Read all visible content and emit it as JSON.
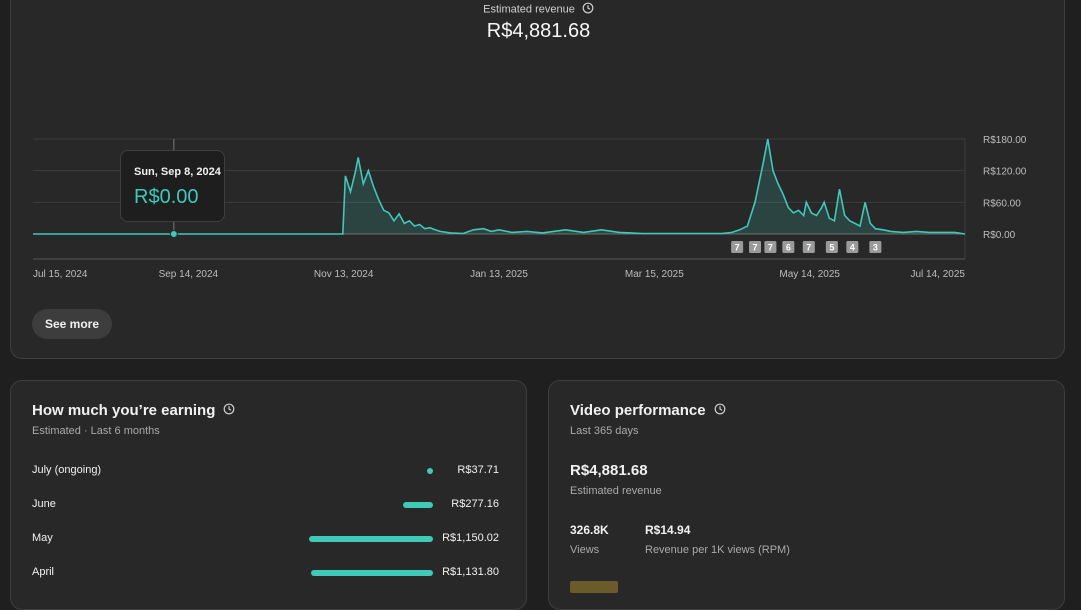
{
  "summary": {
    "title": "Estimated revenue",
    "value": "R$4,881.68"
  },
  "chart_data": {
    "type": "area",
    "x_range": [
      "2024-07-15",
      "2025-07-14"
    ],
    "x_ticks": [
      "Jul 15, 2024",
      "Sep 14, 2024",
      "Nov 13, 2024",
      "Jan 13, 2025",
      "Mar 15, 2025",
      "May 14, 2025",
      "Jul 14, 2025"
    ],
    "y_ticks": [
      "R$180.00",
      "R$120.00",
      "R$60.00",
      "R$0.00"
    ],
    "ylim": [
      0,
      180
    ],
    "grid": true,
    "color": "#3ec9b8",
    "series": [
      {
        "points": [
          [
            "2024-07-15",
            0
          ],
          [
            "2024-08-15",
            0
          ],
          [
            "2024-09-08",
            0
          ],
          [
            "2024-10-15",
            0
          ],
          [
            "2024-11-13",
            0
          ],
          [
            "2024-11-14",
            110
          ],
          [
            "2024-11-16",
            80
          ],
          [
            "2024-11-18",
            120
          ],
          [
            "2024-11-19",
            145
          ],
          [
            "2024-11-21",
            95
          ],
          [
            "2024-11-23",
            120
          ],
          [
            "2024-11-25",
            90
          ],
          [
            "2024-11-27",
            65
          ],
          [
            "2024-11-29",
            45
          ],
          [
            "2024-12-01",
            40
          ],
          [
            "2024-12-03",
            25
          ],
          [
            "2024-12-05",
            38
          ],
          [
            "2024-12-07",
            20
          ],
          [
            "2024-12-09",
            25
          ],
          [
            "2024-12-11",
            15
          ],
          [
            "2024-12-13",
            18
          ],
          [
            "2024-12-15",
            10
          ],
          [
            "2024-12-17",
            12
          ],
          [
            "2024-12-19",
            8
          ],
          [
            "2024-12-21",
            5
          ],
          [
            "2024-12-25",
            2
          ],
          [
            "2024-12-30",
            1
          ],
          [
            "2025-01-03",
            8
          ],
          [
            "2025-01-07",
            10
          ],
          [
            "2025-01-10",
            5
          ],
          [
            "2025-01-13",
            8
          ],
          [
            "2025-01-18",
            3
          ],
          [
            "2025-01-24",
            5
          ],
          [
            "2025-01-30",
            2
          ],
          [
            "2025-02-08",
            8
          ],
          [
            "2025-02-15",
            3
          ],
          [
            "2025-02-22",
            8
          ],
          [
            "2025-03-01",
            3
          ],
          [
            "2025-03-10",
            1
          ],
          [
            "2025-03-20",
            1
          ],
          [
            "2025-04-01",
            1
          ],
          [
            "2025-04-10",
            1
          ],
          [
            "2025-04-14",
            3
          ],
          [
            "2025-04-17",
            8
          ],
          [
            "2025-04-20",
            15
          ],
          [
            "2025-04-23",
            60
          ],
          [
            "2025-04-26",
            130
          ],
          [
            "2025-04-28",
            180
          ],
          [
            "2025-04-30",
            120
          ],
          [
            "2025-05-02",
            95
          ],
          [
            "2025-05-04",
            75
          ],
          [
            "2025-05-06",
            50
          ],
          [
            "2025-05-08",
            40
          ],
          [
            "2025-05-10",
            45
          ],
          [
            "2025-05-12",
            35
          ],
          [
            "2025-05-13",
            60
          ],
          [
            "2025-05-15",
            40
          ],
          [
            "2025-05-17",
            35
          ],
          [
            "2025-05-19",
            50
          ],
          [
            "2025-05-20",
            60
          ],
          [
            "2025-05-22",
            30
          ],
          [
            "2025-05-24",
            25
          ],
          [
            "2025-05-26",
            85
          ],
          [
            "2025-05-28",
            35
          ],
          [
            "2025-05-30",
            25
          ],
          [
            "2025-06-01",
            20
          ],
          [
            "2025-06-03",
            15
          ],
          [
            "2025-06-05",
            60
          ],
          [
            "2025-06-07",
            20
          ],
          [
            "2025-06-09",
            10
          ],
          [
            "2025-06-12",
            8
          ],
          [
            "2025-06-15",
            5
          ],
          [
            "2025-06-20",
            3
          ],
          [
            "2025-06-25",
            5
          ],
          [
            "2025-06-30",
            3
          ],
          [
            "2025-07-05",
            3
          ],
          [
            "2025-07-10",
            3
          ],
          [
            "2025-07-14",
            0
          ]
        ]
      }
    ],
    "markers": [
      {
        "date": "2025-04-16",
        "label": "7"
      },
      {
        "date": "2025-04-23",
        "label": "7"
      },
      {
        "date": "2025-04-29",
        "label": "7"
      },
      {
        "date": "2025-05-06",
        "label": "6"
      },
      {
        "date": "2025-05-14",
        "label": "7"
      },
      {
        "date": "2025-05-23",
        "label": "5"
      },
      {
        "date": "2025-05-31",
        "label": "4"
      },
      {
        "date": "2025-06-09",
        "label": "3"
      }
    ],
    "hover": {
      "date": "2024-09-08",
      "date_label": "Sun, Sep 8, 2024",
      "value_label": "R$0.00"
    }
  },
  "see_more_label": "See more",
  "earnings": {
    "title": "How much you’re earning",
    "subtitle": "Estimated · Last 6 months",
    "rows": [
      {
        "month": "July (ongoing)",
        "amount": "R$37.71",
        "value": 37.71
      },
      {
        "month": "June",
        "amount": "R$277.16",
        "value": 277.16
      },
      {
        "month": "May",
        "amount": "R$1,150.02",
        "value": 1150.02
      },
      {
        "month": "April",
        "amount": "R$1,131.80",
        "value": 1131.8
      }
    ]
  },
  "performance": {
    "title": "Video performance",
    "subtitle": "Last 365 days",
    "revenue_value": "R$4,881.68",
    "revenue_label": "Estimated revenue",
    "views_value": "326.8K",
    "views_label": "Views",
    "rpm_value": "R$14.94",
    "rpm_label": "Revenue per 1K views (RPM)"
  }
}
